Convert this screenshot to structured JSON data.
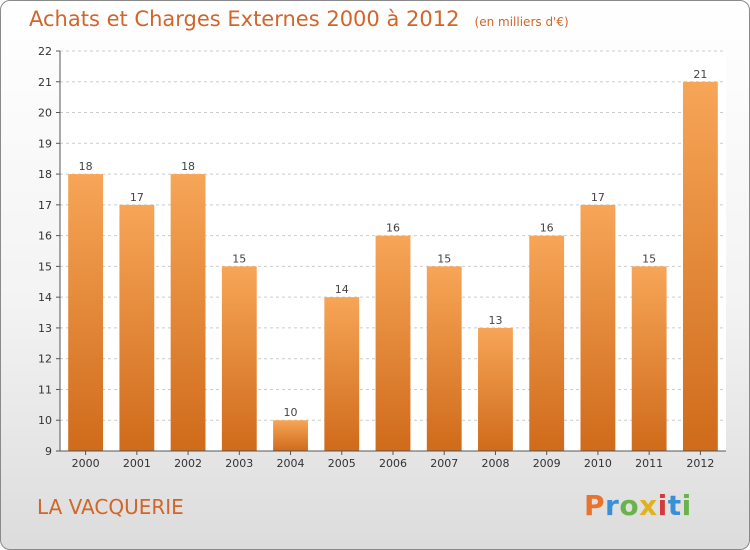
{
  "title": "Achats et Charges Externes 2000 à 2012",
  "unit_note": "(en milliers d'€)",
  "place": "LA VACQUERIE",
  "logo": {
    "text": "Proxiti",
    "colors": [
      "#e8732e",
      "#3a8fd6",
      "#6ab34a",
      "#e0b21c",
      "#d23b3b",
      "#3a8fd6",
      "#6ab34a"
    ]
  },
  "colors": {
    "title": "#d1652a",
    "bar_top": "#f7a557",
    "bar_bottom": "#cf6b1b",
    "grid": "#cccccc",
    "axis": "#555555"
  },
  "chart_data": {
    "type": "bar",
    "categories": [
      "2000",
      "2001",
      "2002",
      "2003",
      "2004",
      "2005",
      "2006",
      "2007",
      "2008",
      "2009",
      "2010",
      "2011",
      "2012"
    ],
    "values": [
      18,
      17,
      18,
      15,
      10,
      14,
      16,
      15,
      13,
      16,
      17,
      15,
      21
    ],
    "data_labels": [
      "18",
      "17",
      "18",
      "15",
      "10",
      "14",
      "16",
      "15",
      "13",
      "16",
      "17",
      "15",
      "21"
    ],
    "ylim": [
      9,
      22
    ],
    "yticks": [
      9,
      10,
      11,
      12,
      13,
      14,
      15,
      16,
      17,
      18,
      19,
      20,
      21,
      22
    ],
    "grid": true,
    "title": "Achats et Charges Externes 2000 à 2012",
    "xlabel": "",
    "ylabel": ""
  }
}
